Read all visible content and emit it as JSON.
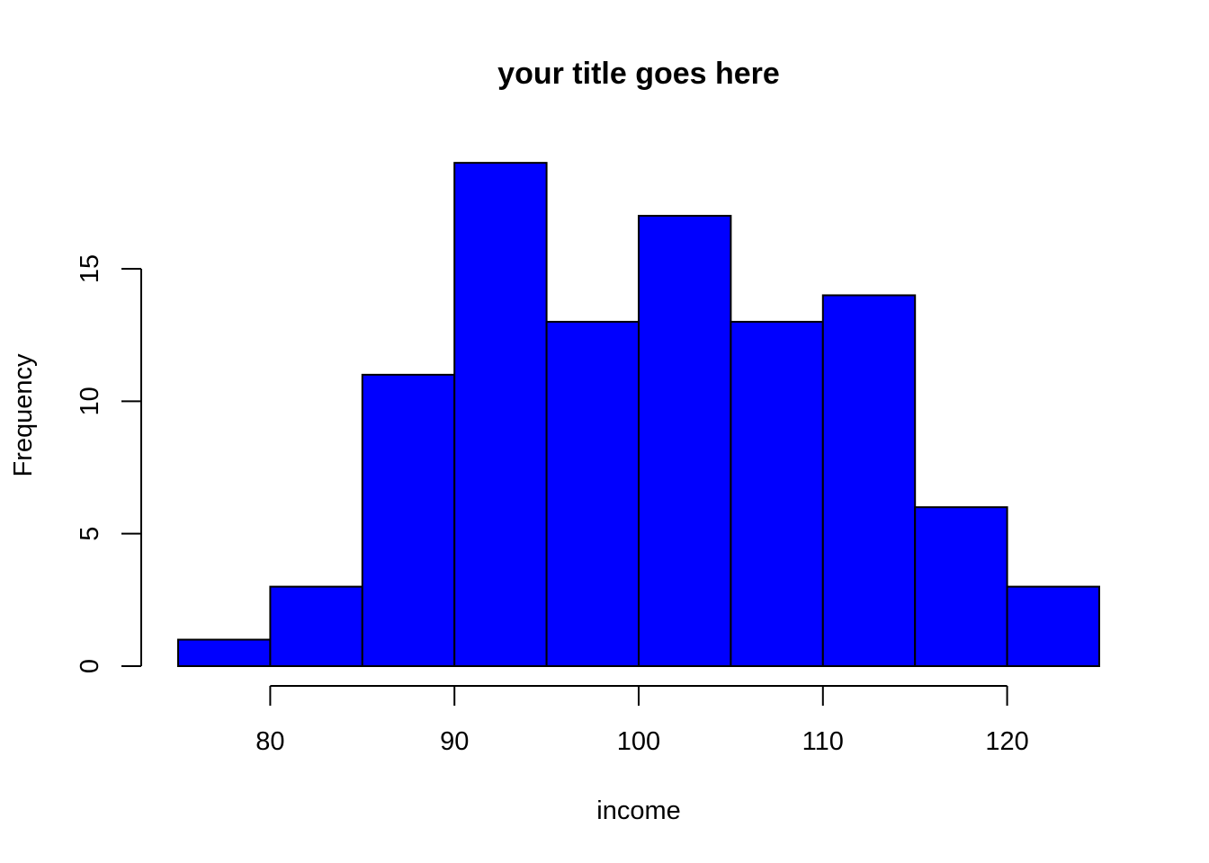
{
  "chart_data": {
    "type": "bar",
    "title": "your title goes here",
    "xlabel": "income",
    "ylabel": "Frequency",
    "bar_color": "#0000ff",
    "bins": [
      {
        "start": 75,
        "end": 80,
        "count": 1
      },
      {
        "start": 80,
        "end": 85,
        "count": 3
      },
      {
        "start": 85,
        "end": 90,
        "count": 11
      },
      {
        "start": 90,
        "end": 95,
        "count": 19
      },
      {
        "start": 95,
        "end": 100,
        "count": 13
      },
      {
        "start": 100,
        "end": 105,
        "count": 17
      },
      {
        "start": 105,
        "end": 110,
        "count": 13
      },
      {
        "start": 110,
        "end": 115,
        "count": 14
      },
      {
        "start": 115,
        "end": 120,
        "count": 6
      },
      {
        "start": 120,
        "end": 125,
        "count": 3
      }
    ],
    "x_ticks": [
      80,
      90,
      100,
      110,
      120
    ],
    "y_ticks": [
      0,
      5,
      10,
      15
    ],
    "xlim": [
      75,
      125
    ],
    "ylim": [
      0,
      19
    ],
    "grid": false,
    "legend": "none"
  }
}
